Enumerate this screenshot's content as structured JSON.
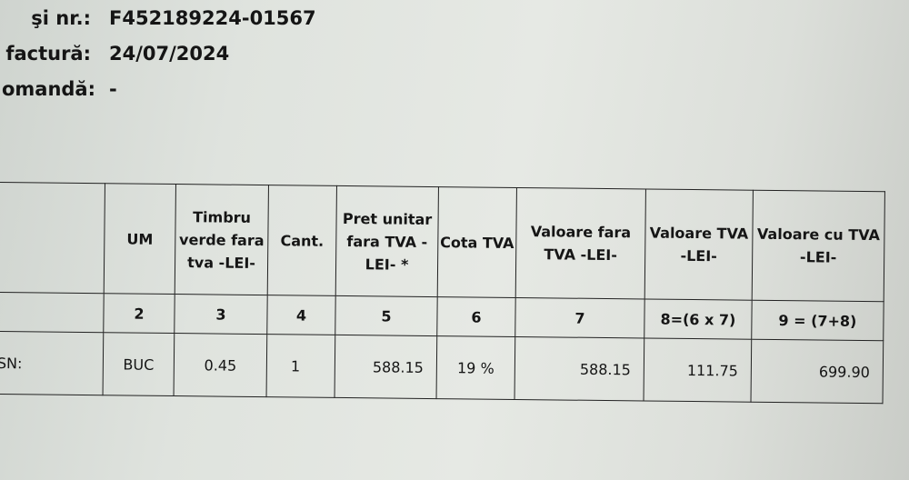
{
  "meta": [
    {
      "label": "şi nr.:",
      "value": "F452189224-01567"
    },
    {
      "label": "factură:",
      "value": "24/07/2024"
    },
    {
      "label": "omandă:",
      "value": "-"
    }
  ],
  "table": {
    "headers": [
      "",
      "UM",
      "Timbru verde fara tva -LEI-",
      "Cant.",
      "Pret unitar fara TVA -LEI- *",
      "Cota TVA",
      "Valoare fara TVA -LEI-",
      "Valoare TVA -LEI-",
      "Valoare cu TVA -LEI-"
    ],
    "numbers": [
      "",
      "2",
      "3",
      "4",
      "5",
      "6",
      "7",
      "8=(6 x 7)",
      "9 = (7+8)"
    ],
    "rows": [
      [
        "SN:",
        "BUC",
        "0.45",
        "1",
        "588.15",
        "19 %",
        "588.15",
        "111.75",
        "699.90"
      ]
    ]
  }
}
